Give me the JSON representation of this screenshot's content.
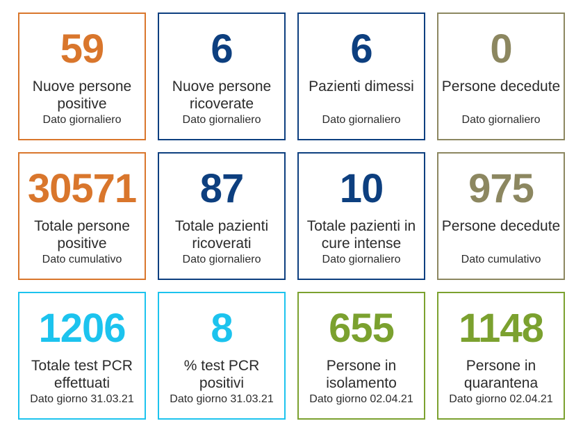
{
  "tiles": [
    {
      "value": "59",
      "label": "Nuove persone positive",
      "sub": "Dato giornaliero",
      "color": "#d9762c"
    },
    {
      "value": "6",
      "label": "Nuove persone ricoverate",
      "sub": "Dato giornaliero",
      "color": "#0d3f7f"
    },
    {
      "value": "6",
      "label": "Pazienti dimessi",
      "sub": "Dato giornaliero",
      "color": "#0d3f7f"
    },
    {
      "value": "0",
      "label": "Persone decedute",
      "sub": "Dato giornaliero",
      "color": "#8c8760"
    },
    {
      "value": "30571",
      "label": "Totale persone positive",
      "sub": "Dato cumulativo",
      "color": "#d9762c"
    },
    {
      "value": "87",
      "label": "Totale pazienti ricoverati",
      "sub": "Dato giornaliero",
      "color": "#0d3f7f"
    },
    {
      "value": "10",
      "label": "Totale pazienti in cure intense",
      "sub": "Dato giornaliero",
      "color": "#0d3f7f"
    },
    {
      "value": "975",
      "label": "Persone decedute",
      "sub": "Dato cumulativo",
      "color": "#8c8760"
    },
    {
      "value": "1206",
      "label": "Totale test PCR effettuati",
      "sub": "Dato giorno 31.03.21",
      "color": "#1cc3ee"
    },
    {
      "value": "8",
      "label": "% test PCR positivi",
      "sub": "Dato giorno 31.03.21",
      "color": "#1cc3ee"
    },
    {
      "value": "655",
      "label": "Persone in isolamento",
      "sub": "Dato giorno 02.04.21",
      "color": "#7ba12f"
    },
    {
      "value": "1148",
      "label": "Persone in quarantena",
      "sub": "Dato giorno 02.04.21",
      "color": "#7ba12f"
    }
  ]
}
